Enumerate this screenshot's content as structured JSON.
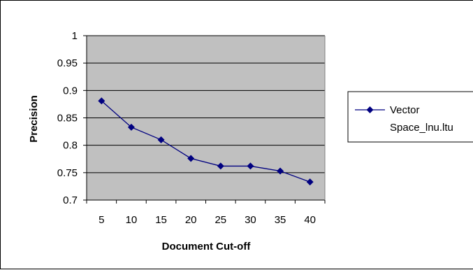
{
  "chart_data": {
    "type": "line",
    "title": "",
    "xlabel": "Document Cut-off",
    "ylabel": "Precision",
    "categories": [
      "5",
      "10",
      "15",
      "20",
      "25",
      "30",
      "35",
      "40"
    ],
    "ylim": [
      0.7,
      1
    ],
    "yticks": [
      "1",
      "0.95",
      "0.9",
      "0.85",
      "0.8",
      "0.75",
      "0.7"
    ],
    "grid": "horizontal",
    "legend_position": "right",
    "plot_background": "#c0c0c0",
    "series": [
      {
        "name": "Vector Space_lnu.ltu",
        "legend_lines": [
          "Vector",
          "Space_lnu.ltu"
        ],
        "color": "#000080",
        "marker": "diamond",
        "values": [
          0.881,
          0.833,
          0.81,
          0.776,
          0.762,
          0.762,
          0.753,
          0.733
        ]
      }
    ]
  }
}
